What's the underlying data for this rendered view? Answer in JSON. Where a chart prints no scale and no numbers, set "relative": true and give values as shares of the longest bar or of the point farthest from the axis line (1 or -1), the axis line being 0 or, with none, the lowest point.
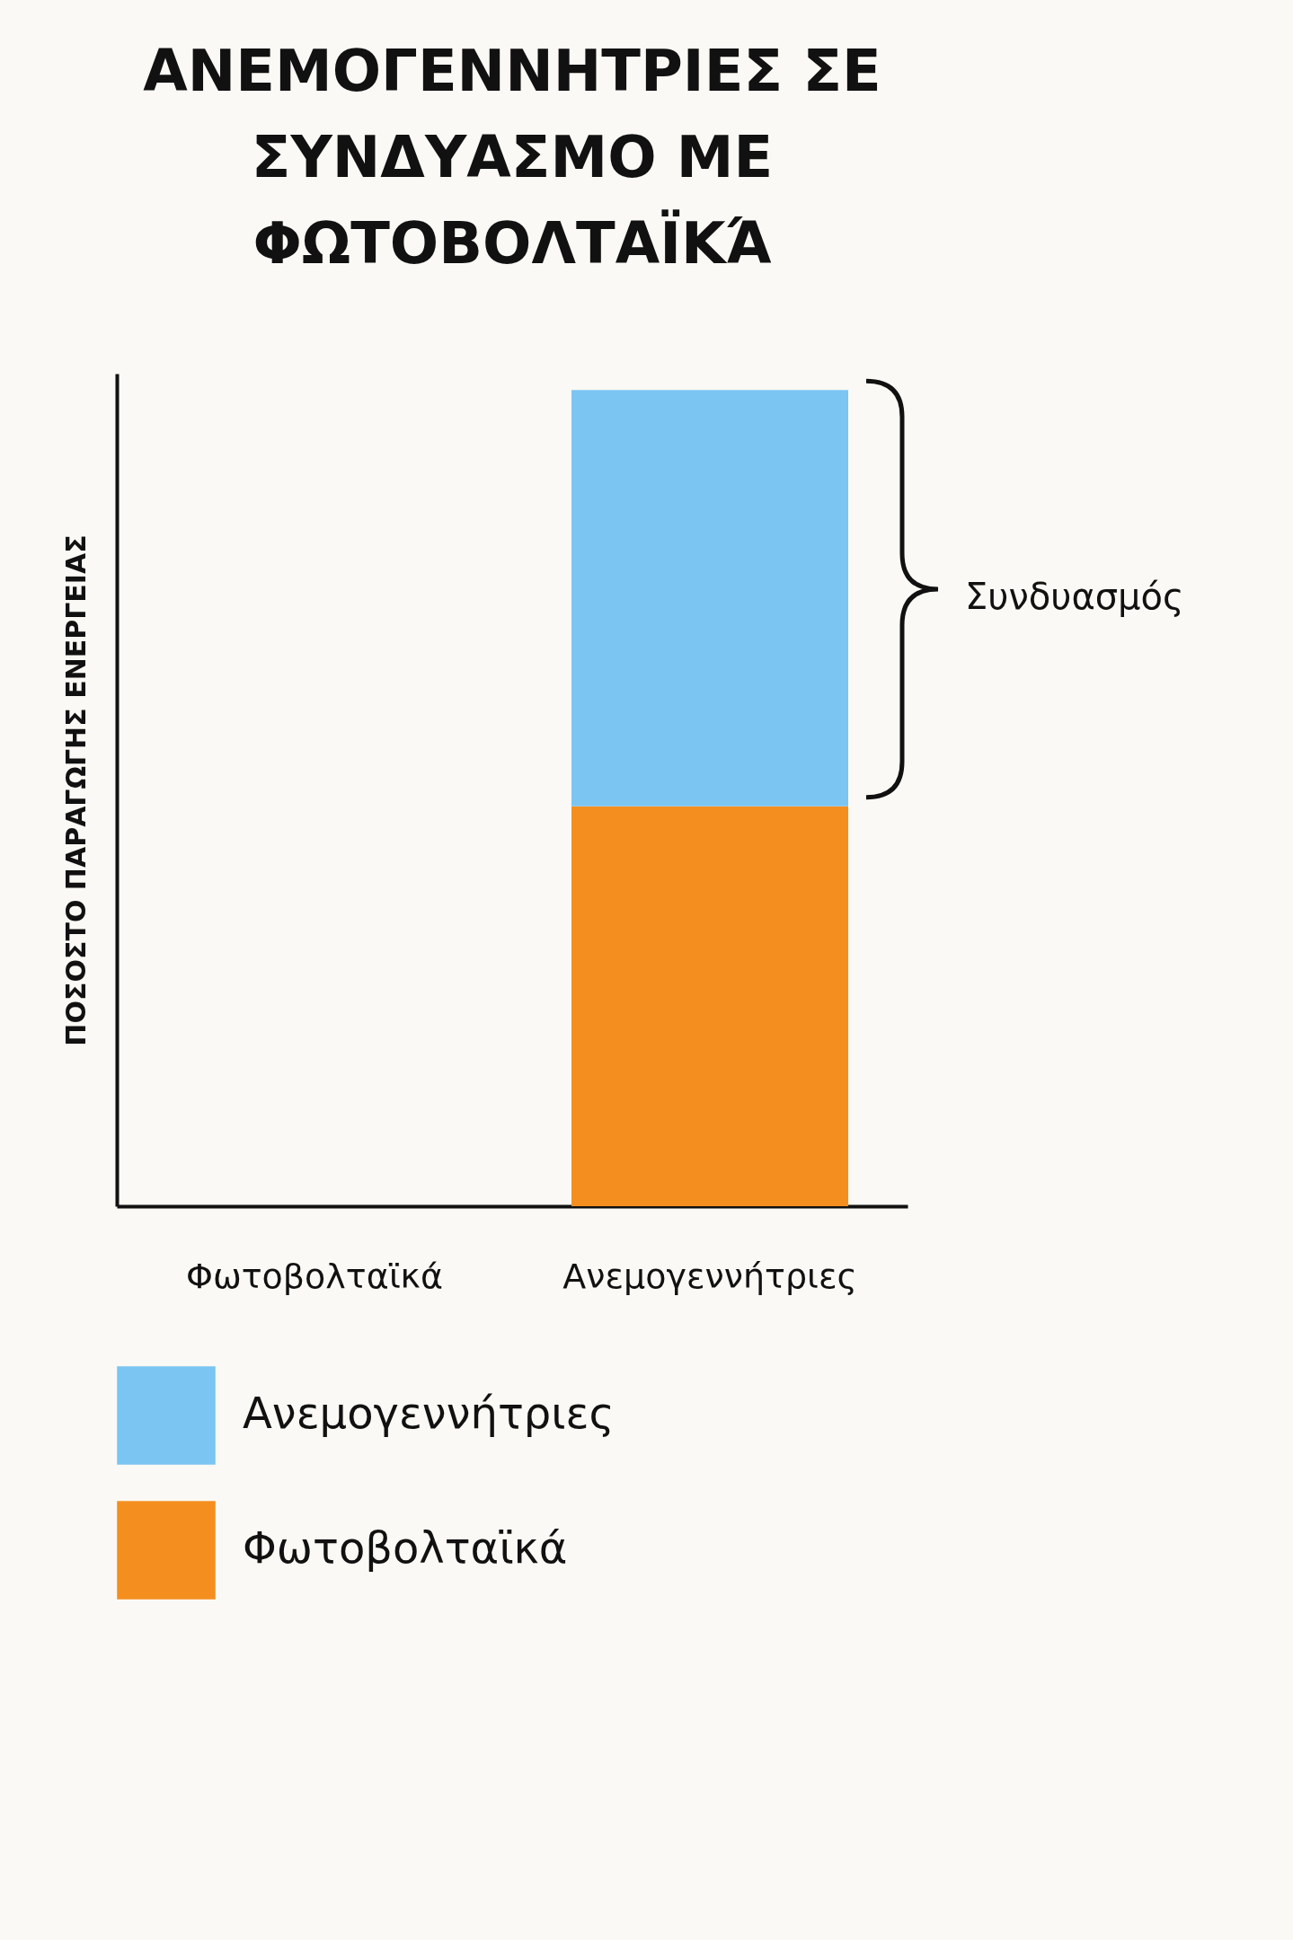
{
  "chart_data": {
    "type": "bar",
    "title": "ΑΝΕΜΟΓΕΝΝΗΤΡΙΕΣ ΣΕ ΣΥΝΔΥΑΣΜΟ ΜΕ ΦΩΤΟΒΟΛΤΑΪΚΆ",
    "ylabel": "ΠΟΣΟΣΤΟ ΠΑΡΑΓΩΓΗΣ ΕΝΕΡΓΕΙΑΣ",
    "categories": [
      "Φωτοβολταϊκά",
      "Ανεμογεννήτριες"
    ],
    "stacked": true,
    "relative": true,
    "legend": "bottom",
    "series": [
      {
        "name": "Φωτοβολταϊκά",
        "color": "#f48f1f",
        "values": [
          null,
          0.49
        ]
      },
      {
        "name": "Ανεμογεννήτριες",
        "color": "#7bc5f2",
        "values": [
          null,
          0.51
        ]
      }
    ],
    "annotations": [
      "Συνδυασμός"
    ]
  }
}
